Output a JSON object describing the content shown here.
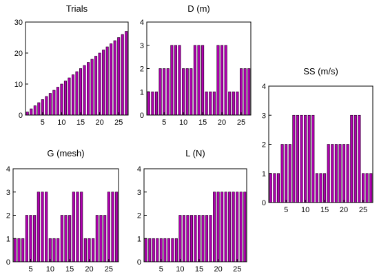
{
  "colors": {
    "bar_fill": "#b000b0",
    "bar_stroke": "#1a001a",
    "axis": "#000000"
  },
  "chart_data": [
    {
      "type": "bar",
      "title": "Trials",
      "x": [
        1,
        2,
        3,
        4,
        5,
        6,
        7,
        8,
        9,
        10,
        11,
        12,
        13,
        14,
        15,
        16,
        17,
        18,
        19,
        20,
        21,
        22,
        23,
        24,
        25,
        26,
        27
      ],
      "values": [
        1,
        2,
        3,
        4,
        5,
        6,
        7,
        8,
        9,
        10,
        11,
        12,
        13,
        14,
        15,
        16,
        17,
        18,
        19,
        20,
        21,
        22,
        23,
        24,
        25,
        26,
        27
      ],
      "xticks": [
        "5",
        "10",
        "15",
        "20",
        "25"
      ],
      "yticks": [
        "0",
        "10",
        "20",
        "30"
      ],
      "ylim": [
        0,
        30
      ],
      "grid": false
    },
    {
      "type": "bar",
      "title": "D (m)",
      "x": [
        1,
        2,
        3,
        4,
        5,
        6,
        7,
        8,
        9,
        10,
        11,
        12,
        13,
        14,
        15,
        16,
        17,
        18,
        19,
        20,
        21,
        22,
        23,
        24,
        25,
        26,
        27
      ],
      "values": [
        1,
        1,
        1,
        2,
        2,
        2,
        3,
        3,
        3,
        2,
        2,
        2,
        3,
        3,
        3,
        1,
        1,
        1,
        3,
        3,
        3,
        1,
        1,
        1,
        2,
        2,
        2
      ],
      "xticks": [
        "5",
        "10",
        "15",
        "20",
        "25"
      ],
      "yticks": [
        "0",
        "1",
        "2",
        "3",
        "4"
      ],
      "ylim": [
        0,
        4
      ],
      "grid": false
    },
    {
      "type": "bar",
      "title": "SS (m/s)",
      "x": [
        1,
        2,
        3,
        4,
        5,
        6,
        7,
        8,
        9,
        10,
        11,
        12,
        13,
        14,
        15,
        16,
        17,
        18,
        19,
        20,
        21,
        22,
        23,
        24,
        25,
        26,
        27
      ],
      "values": [
        1,
        1,
        1,
        2,
        2,
        2,
        3,
        3,
        3,
        3,
        3,
        3,
        1,
        1,
        1,
        2,
        2,
        2,
        2,
        2,
        2,
        3,
        3,
        3,
        1,
        1,
        1
      ],
      "xticks": [
        "5",
        "10",
        "15",
        "20",
        "25"
      ],
      "yticks": [
        "0",
        "1",
        "2",
        "3",
        "4"
      ],
      "ylim": [
        0,
        4
      ],
      "grid": false
    },
    {
      "type": "bar",
      "title": "G (mesh)",
      "x": [
        1,
        2,
        3,
        4,
        5,
        6,
        7,
        8,
        9,
        10,
        11,
        12,
        13,
        14,
        15,
        16,
        17,
        18,
        19,
        20,
        21,
        22,
        23,
        24,
        25,
        26,
        27
      ],
      "values": [
        1,
        1,
        1,
        2,
        2,
        2,
        3,
        3,
        3,
        1,
        1,
        1,
        2,
        2,
        2,
        3,
        3,
        3,
        1,
        1,
        1,
        2,
        2,
        2,
        3,
        3,
        3
      ],
      "xticks": [
        "5",
        "10",
        "15",
        "20",
        "25"
      ],
      "yticks": [
        "0",
        "1",
        "2",
        "3",
        "4"
      ],
      "ylim": [
        0,
        4
      ],
      "grid": false
    },
    {
      "type": "bar",
      "title": "L (N)",
      "x": [
        1,
        2,
        3,
        4,
        5,
        6,
        7,
        8,
        9,
        10,
        11,
        12,
        13,
        14,
        15,
        16,
        17,
        18,
        19,
        20,
        21,
        22,
        23,
        24,
        25,
        26,
        27
      ],
      "values": [
        1,
        1,
        1,
        1,
        1,
        1,
        1,
        1,
        1,
        2,
        2,
        2,
        2,
        2,
        2,
        2,
        2,
        2,
        3,
        3,
        3,
        3,
        3,
        3,
        3,
        3,
        3
      ],
      "xticks": [
        "5",
        "10",
        "15",
        "20",
        "25"
      ],
      "yticks": [
        "0",
        "1",
        "2",
        "3",
        "4"
      ],
      "ylim": [
        0,
        4
      ],
      "grid": false
    }
  ]
}
